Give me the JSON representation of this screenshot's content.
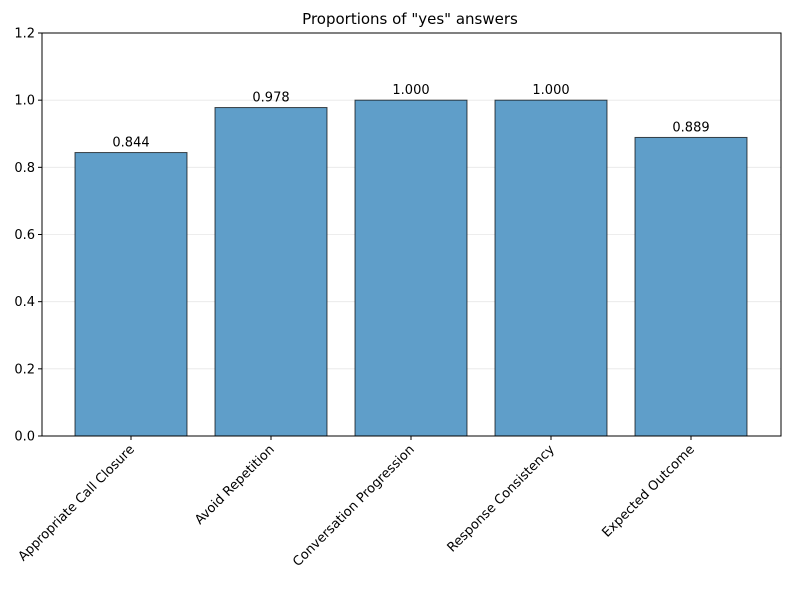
{
  "chart_data": {
    "type": "bar",
    "title": "Proportions of \"yes\" answers",
    "xlabel": "",
    "ylabel": "",
    "categories": [
      "Appropriate Call Closure",
      "Avoid Repetition",
      "Conversation Progression",
      "Response Consistency",
      "Expected Outcome"
    ],
    "values": [
      0.844,
      0.978,
      1.0,
      1.0,
      0.889
    ],
    "value_labels": [
      "0.844",
      "0.978",
      "1.000",
      "1.000",
      "0.889"
    ],
    "ylim": [
      0,
      1.2
    ],
    "yticks": [
      0.0,
      0.2,
      0.4,
      0.6,
      0.8,
      1.0,
      1.2
    ],
    "ytick_labels": [
      "0.0",
      "0.2",
      "0.4",
      "0.6",
      "0.8",
      "1.0",
      "1.2"
    ],
    "grid": "y-axis only",
    "legend": "none",
    "bar_color": "#5f9ec9",
    "bar_edge_color": "#000000"
  }
}
